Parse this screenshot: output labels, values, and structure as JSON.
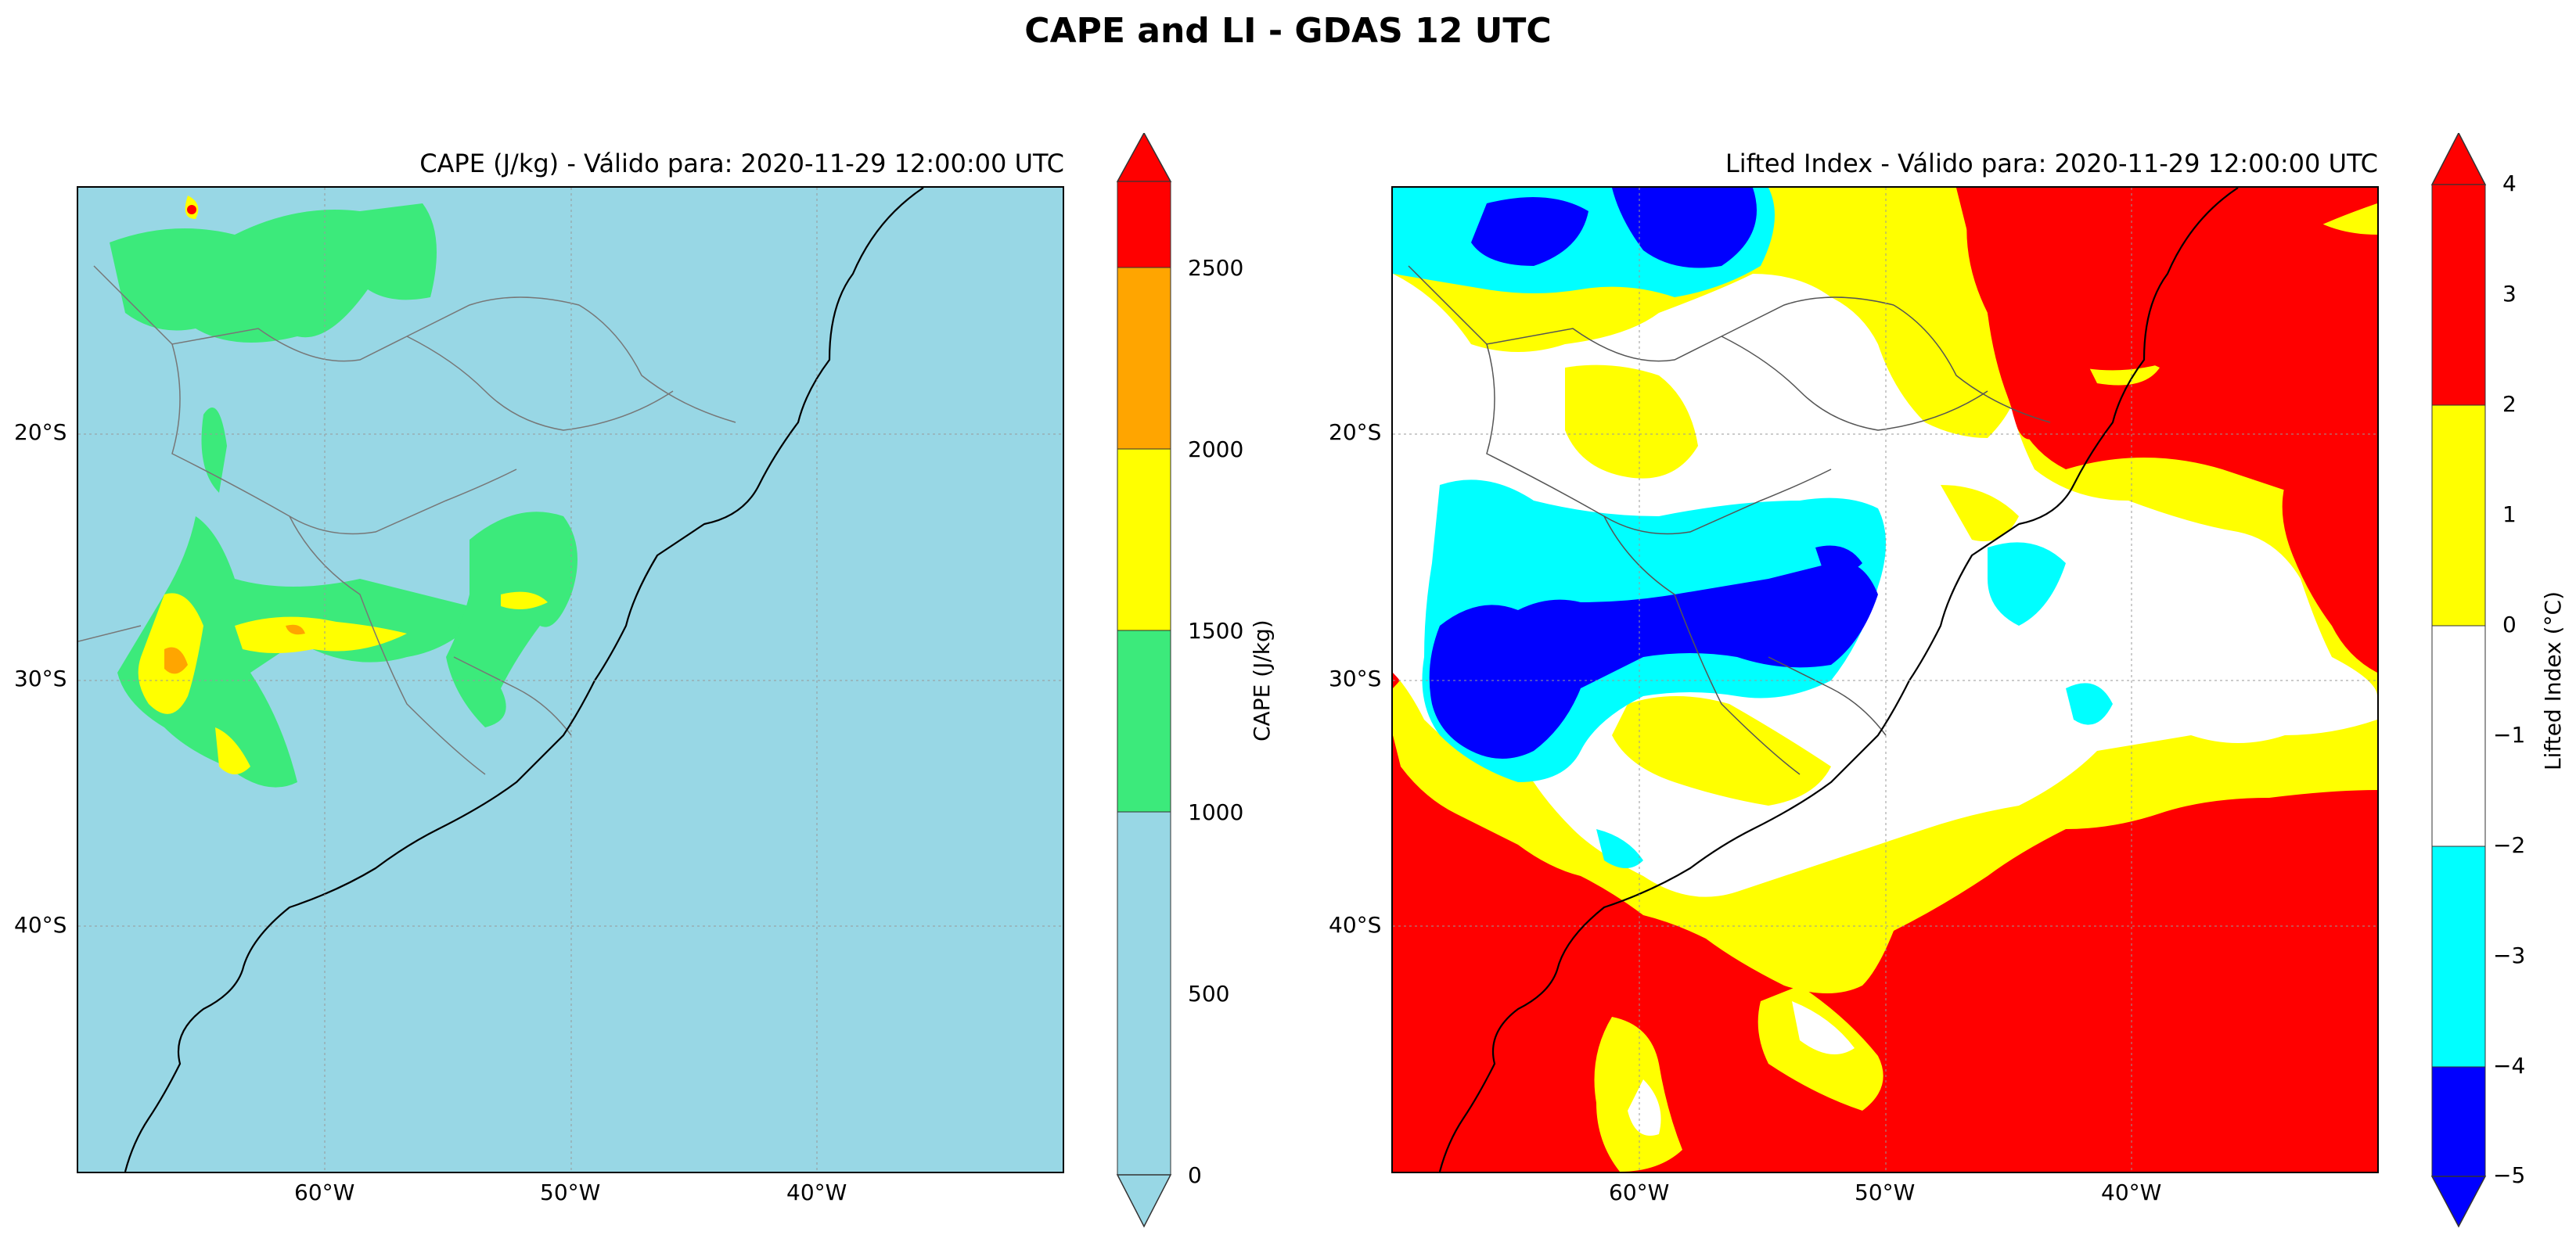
{
  "suptitle": "CAPE and LI - GDAS 12 UTC",
  "colors": {
    "cape_background": "#98D7E5",
    "cape_green": "#3CEA7B",
    "cape_yellow": "#FFFF00",
    "cape_orange": "#FFA500",
    "cape_red": "#FF0000",
    "li_blue": "#0000FF",
    "li_cyan": "#00FFFF",
    "li_white": "#FFFFFF",
    "li_yellow": "#FFFF00",
    "li_red": "#FF0000",
    "coastline": "#000000",
    "borders": "#666666"
  },
  "panels": {
    "cape": {
      "title": "CAPE (J/kg) - Válido para: 2020-11-29 12:00:00 UTC",
      "lat_labels": [
        "20°S",
        "30°S",
        "40°S"
      ],
      "lon_labels": [
        "60°W",
        "50°W",
        "40°W"
      ],
      "colorbar": {
        "label": "CAPE (J/kg)",
        "ticks": [
          "0",
          "500",
          "1000",
          "1500",
          "2000",
          "2500"
        ],
        "levels": [
          0,
          1000,
          1500,
          2000,
          2500
        ],
        "extend": "both"
      }
    },
    "li": {
      "title": "Lifted Index - Válido para: 2020-11-29 12:00:00 UTC",
      "lat_labels": [
        "20°S",
        "30°S",
        "40°S"
      ],
      "lon_labels": [
        "60°W",
        "50°W",
        "40°W"
      ],
      "colorbar": {
        "label": "Lifted Index (°C)",
        "ticks": [
          "4",
          "3",
          "2",
          "1",
          "0",
          "−1",
          "−2",
          "−3",
          "−4",
          "−5"
        ],
        "levels": [
          -4,
          -2,
          0,
          2
        ],
        "extend": "both"
      }
    }
  },
  "chart_data": [
    {
      "type": "heatmap",
      "title": "CAPE (J/kg) - Válido para: 2020-11-29 12:00:00 UTC",
      "variable": "CAPE",
      "units": "J/kg",
      "valid_time": "2020-11-29 12:00:00 UTC",
      "lon_range": [
        -70,
        -30
      ],
      "lat_range": [
        -50,
        -10
      ],
      "xticks": [
        "60°W",
        "50°W",
        "40°W"
      ],
      "yticks": [
        "20°S",
        "30°S",
        "40°S"
      ],
      "colorbar_ticks": [
        0,
        500,
        1000,
        1500,
        2000,
        2500
      ],
      "colorbar_range": [
        0,
        2750
      ]
    },
    {
      "type": "heatmap",
      "title": "Lifted Index - Válido para: 2020-11-29 12:00:00 UTC",
      "variable": "Lifted Index",
      "units": "°C",
      "valid_time": "2020-11-29 12:00:00 UTC",
      "lon_range": [
        -70,
        -30
      ],
      "lat_range": [
        -50,
        -10
      ],
      "xticks": [
        "60°W",
        "50°W",
        "40°W"
      ],
      "yticks": [
        "20°S",
        "30°S",
        "40°S"
      ],
      "colorbar_ticks": [
        4,
        3,
        2,
        1,
        0,
        -1,
        -2,
        -3,
        -4,
        -5
      ],
      "colorbar_range": [
        -5,
        4
      ]
    }
  ]
}
